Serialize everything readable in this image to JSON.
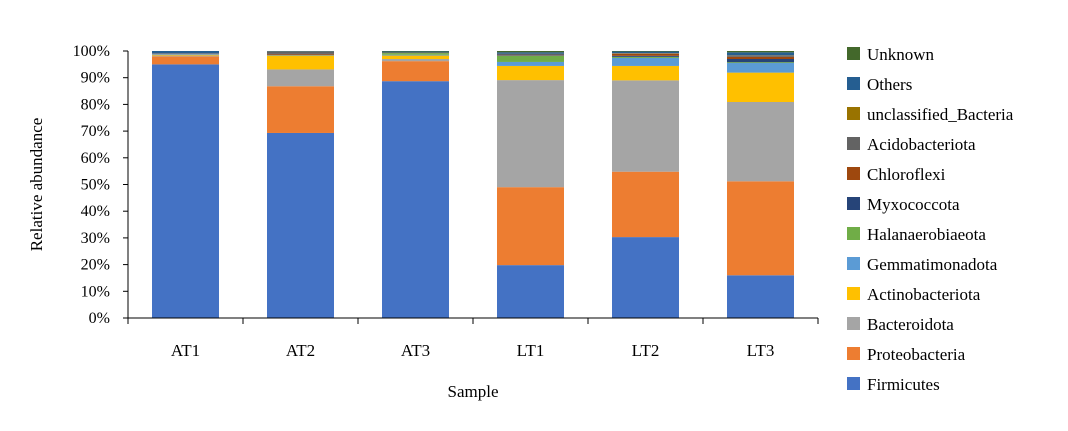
{
  "chart_data": {
    "type": "bar",
    "stacked": true,
    "title": "",
    "xlabel": "Sample",
    "ylabel": "Relative abundance",
    "ylim": [
      0,
      100
    ],
    "y_ticks": [
      "0%",
      "10%",
      "20%",
      "30%",
      "40%",
      "50%",
      "60%",
      "70%",
      "80%",
      "90%",
      "100%"
    ],
    "categories": [
      "AT1",
      "AT2",
      "AT3",
      "LT1",
      "LT2",
      "LT3"
    ],
    "legend_position": "right",
    "series": [
      {
        "name": "Firmicutes",
        "color": "#4472C4",
        "values": [
          95.0,
          69.3,
          88.7,
          19.8,
          30.3,
          16.0
        ]
      },
      {
        "name": "Proteobacteria",
        "color": "#ED7D31",
        "values": [
          3.0,
          17.5,
          7.5,
          29.2,
          24.5,
          35.2
        ]
      },
      {
        "name": "Bacteroidota",
        "color": "#A5A5A5",
        "values": [
          0.3,
          6.3,
          0.8,
          40.1,
          34.2,
          29.7
        ]
      },
      {
        "name": "Actinobacteriota",
        "color": "#FFC000",
        "values": [
          0.3,
          5.2,
          1.3,
          5.3,
          5.4,
          11.0
        ]
      },
      {
        "name": "Gemmatimonadota",
        "color": "#5B9BD5",
        "values": [
          0.2,
          0.2,
          0.3,
          1.5,
          3.0,
          3.6
        ]
      },
      {
        "name": "Halanaerobiaeota",
        "color": "#70AD47",
        "values": [
          0.0,
          0.0,
          0.6,
          2.3,
          0.4,
          0.3
        ]
      },
      {
        "name": "Myxococcota",
        "color": "#264478",
        "values": [
          0.2,
          0.1,
          0.0,
          0.2,
          0.4,
          1.2
        ]
      },
      {
        "name": "Chloroflexi",
        "color": "#9E480E",
        "values": [
          0.0,
          0.3,
          0.0,
          0.1,
          0.8,
          0.8
        ]
      },
      {
        "name": "Acidobacteriota",
        "color": "#636363",
        "values": [
          0.2,
          0.8,
          0.0,
          0.5,
          0.1,
          0.5
        ]
      },
      {
        "name": "unclassified_Bacteria",
        "color": "#997300",
        "values": [
          0.0,
          0.1,
          0.2,
          0.0,
          0.1,
          0.1
        ]
      },
      {
        "name": "Others",
        "color": "#255E91",
        "values": [
          0.8,
          0.2,
          0.4,
          0.5,
          0.6,
          1.1
        ]
      },
      {
        "name": "Unknown",
        "color": "#43682B",
        "values": [
          0.0,
          0.0,
          0.2,
          0.5,
          0.2,
          0.5
        ]
      }
    ]
  }
}
